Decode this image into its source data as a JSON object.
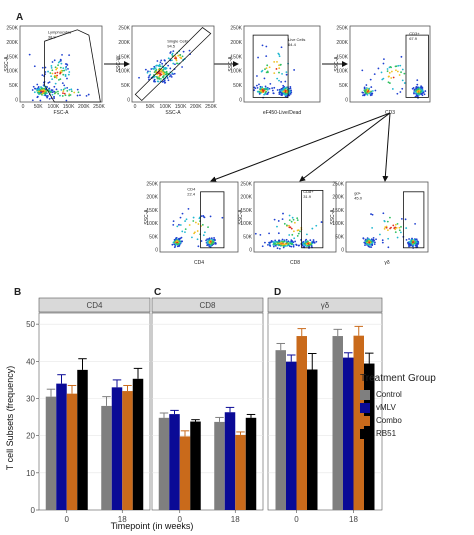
{
  "panel_labels": {
    "a": "A",
    "b": "B",
    "c": "C",
    "d": "D"
  },
  "flow": {
    "plots": [
      {
        "id": "p1",
        "gate_name": "Lymphocytes",
        "gate_value": "38.9",
        "x_label": "FSC-A",
        "y_label": "SSC-A",
        "y_ticks": [
          "250K",
          "200K",
          "150K",
          "100K",
          "50K",
          "0"
        ],
        "x_ticks": [
          "0",
          "50K",
          "100K",
          "150K",
          "200K",
          "250K"
        ]
      },
      {
        "id": "p2",
        "gate_name": "Single Cells",
        "gate_value": "94.5",
        "x_label": "SSC-A",
        "y_label": "SSC-W",
        "y_ticks": [
          "250K",
          "200K",
          "150K",
          "100K",
          "50K",
          "0"
        ],
        "x_ticks": [
          "0",
          "50K",
          "100K",
          "150K",
          "200K",
          "250K"
        ]
      },
      {
        "id": "p3",
        "gate_name": "Live Cells",
        "gate_value": "64.4",
        "x_label": "eF450-Live/Dead",
        "y_label": "SSC-A",
        "y_ticks": [
          "250K",
          "200K",
          "150K",
          "100K",
          "50K",
          "0"
        ],
        "x_ticks": []
      },
      {
        "id": "p4",
        "gate_name": "CD3+",
        "gate_value": "67.9",
        "x_label": "CD3",
        "y_label": "SSC-A",
        "y_ticks": [
          "250K",
          "200K",
          "150K",
          "100K",
          "50K",
          "0"
        ],
        "x_ticks": []
      },
      {
        "id": "p5",
        "gate_name": "CD4",
        "gate_value": "22.4",
        "x_label": "CD4",
        "y_label": "SSC-A",
        "y_ticks": [
          "250K",
          "200K",
          "150K",
          "100K",
          "50K",
          "0"
        ],
        "x_ticks": []
      },
      {
        "id": "p6",
        "gate_name": "CD8+",
        "gate_value": "31.9",
        "x_label": "CD8",
        "y_label": "SSC-A",
        "y_ticks": [
          "250K",
          "200K",
          "150K",
          "100K",
          "50K",
          "0"
        ],
        "x_ticks": []
      },
      {
        "id": "p7",
        "gate_name": "gd+",
        "gate_value": "45.0",
        "x_label": "γδ",
        "y_label": "SSC-A",
        "y_ticks": [
          "250K",
          "200K",
          "150K",
          "100K",
          "50K",
          "0"
        ],
        "x_ticks": []
      }
    ]
  },
  "colors": {
    "Control": "#7f7f7f",
    "vMLV": "#0a0a96",
    "Combo": "#c96a1b",
    "RB51": "#000000",
    "facet_strip": "#d9d9d9",
    "panel_bg": "#ffffff",
    "grid": "#e6e6e6"
  },
  "chart_data": {
    "type": "bar",
    "facets": [
      "CD4",
      "CD8",
      "γδ"
    ],
    "categories": [
      "0",
      "18"
    ],
    "xlabel": "Timepoint (in weeks)",
    "ylabel": "T cell Subsets (frequency)",
    "ylim": [
      0,
      53
    ],
    "yticks": [
      0,
      10,
      20,
      30,
      40,
      50
    ],
    "legend_title": "Treatment Group",
    "legend_position": "right",
    "series": [
      {
        "name": "Control",
        "values": [
          [
            30.5,
            28.0
          ],
          [
            24.8,
            23.7
          ],
          [
            43.0,
            46.8
          ]
        ],
        "errors": [
          [
            2.0,
            2.5
          ],
          [
            1.3,
            1.2
          ],
          [
            1.8,
            1.8
          ]
        ]
      },
      {
        "name": "vMLV",
        "values": [
          [
            34.0,
            33.0
          ],
          [
            25.8,
            26.3
          ],
          [
            39.9,
            41.0
          ]
        ],
        "errors": [
          [
            2.4,
            2.0
          ],
          [
            1.0,
            1.3
          ],
          [
            1.8,
            1.3
          ]
        ]
      },
      {
        "name": "Combo",
        "values": [
          [
            31.3,
            32.0
          ],
          [
            19.8,
            20.2
          ],
          [
            46.8,
            46.9
          ]
        ],
        "errors": [
          [
            2.2,
            1.5
          ],
          [
            1.5,
            0.8
          ],
          [
            2.0,
            2.5
          ]
        ]
      },
      {
        "name": "RB51",
        "values": [
          [
            37.7,
            35.3
          ],
          [
            23.8,
            24.8
          ],
          [
            37.8,
            39.4
          ]
        ],
        "errors": [
          [
            3.0,
            2.8
          ],
          [
            0.5,
            0.9
          ],
          [
            4.3,
            2.8
          ]
        ]
      }
    ]
  }
}
